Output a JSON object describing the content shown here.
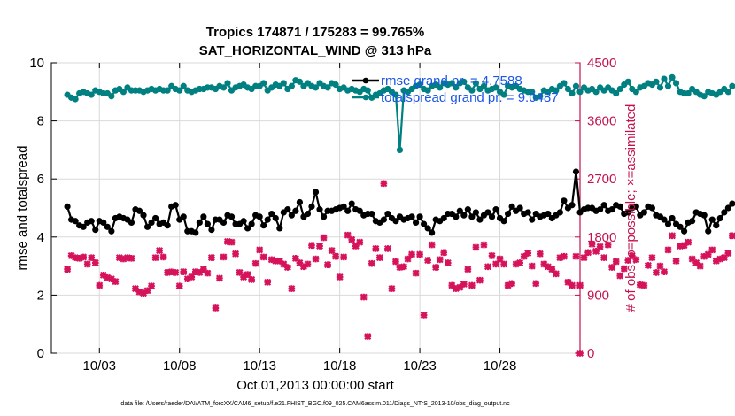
{
  "chart_data": {
    "type": "line",
    "title_line1": "Tropics 174871 / 175283 = 99.765%",
    "title_line2": "SAT_HORIZONTAL_WIND @ 313 hPa",
    "xlabel": "Oct.01,2013 00:00:00 start",
    "ylabel_left": "rmse and totalspread",
    "ylabel_right": "# of obs: o=possible; ×=assimilated",
    "footnote": "data file: /Users/raeder/DAI/ATM_forcXX/CAM6_setup/f.e21.FHIST_BGC.f09_025.CAM6assim.011/Diags_NTrS_2013-10/obs_diag_output.nc",
    "xlim": [
      0.0,
      33.0
    ],
    "ylim_left": [
      0,
      10
    ],
    "ylim_right": [
      0,
      4500
    ],
    "x_ticks": [
      {
        "value": 3,
        "label": "10/03"
      },
      {
        "value": 8,
        "label": "10/08"
      },
      {
        "value": 13,
        "label": "10/13"
      },
      {
        "value": 18,
        "label": "10/18"
      },
      {
        "value": 23,
        "label": "10/23"
      },
      {
        "value": 28,
        "label": "10/28"
      }
    ],
    "y_ticks_left": [
      "0",
      "2",
      "4",
      "6",
      "8",
      "10"
    ],
    "y_ticks_right": [
      "0",
      "900",
      "1800",
      "2700",
      "3600",
      "4500"
    ],
    "x_start": 1.0,
    "x_step": 0.25,
    "colors": {
      "rmse": "#000000",
      "totalspread": "#008080",
      "obs": "#d6125b",
      "right_axis": "#c4124f",
      "legend_text": "#1a56e8"
    },
    "series": [
      {
        "name": "rmse grand pr. = 4.7588",
        "axis": "left",
        "values": [
          5.05,
          4.6,
          4.55,
          4.4,
          4.35,
          4.5,
          4.55,
          4.25,
          4.55,
          4.5,
          4.35,
          4.2,
          4.65,
          4.7,
          4.65,
          4.6,
          4.5,
          4.95,
          4.9,
          4.75,
          4.35,
          4.5,
          4.65,
          4.45,
          4.5,
          4.4,
          5.05,
          5.1,
          4.6,
          4.7,
          4.2,
          4.2,
          4.15,
          4.5,
          4.7,
          4.45,
          4.25,
          4.6,
          4.6,
          4.5,
          4.75,
          4.7,
          4.45,
          4.45,
          4.55,
          4.3,
          4.45,
          4.75,
          4.7,
          4.4,
          4.6,
          4.8,
          4.65,
          4.3,
          4.85,
          4.95,
          4.75,
          4.9,
          5.2,
          4.7,
          4.8,
          5.05,
          5.55,
          4.95,
          4.7,
          4.9,
          4.9,
          4.95,
          5.0,
          5.05,
          4.9,
          5.15,
          4.95,
          4.9,
          4.75,
          4.8,
          4.8,
          4.55,
          4.5,
          4.6,
          4.8,
          4.65,
          4.55,
          4.7,
          4.6,
          4.65,
          4.7,
          4.5,
          4.7,
          4.45,
          4.3,
          4.15,
          4.6,
          4.55,
          4.65,
          4.8,
          4.8,
          4.7,
          4.9,
          4.75,
          4.95,
          4.7,
          4.85,
          4.6,
          4.75,
          4.85,
          4.7,
          4.95,
          4.65,
          4.55,
          4.8,
          5.05,
          4.9,
          5.0,
          4.8,
          4.85,
          4.6,
          4.8,
          4.7,
          4.75,
          4.8,
          4.65,
          4.75,
          4.85,
          5.25,
          5.0,
          5.1,
          6.25,
          4.85,
          4.95,
          5.0,
          5.0,
          4.9,
          4.95,
          5.1,
          4.9,
          4.95,
          5.1,
          5.05,
          4.8,
          4.85,
          5.0,
          5.05,
          4.75,
          4.85,
          5.05,
          5.0,
          4.75,
          4.7,
          4.6,
          4.45,
          4.65,
          4.45,
          4.35,
          4.2,
          4.5,
          4.55,
          4.85,
          4.8,
          4.75,
          4.2,
          4.6,
          4.4,
          4.65,
          4.85,
          5.0,
          5.15
        ]
      },
      {
        "name": "totalspread grand pr. = 9.0487",
        "axis": "left",
        "values": [
          8.9,
          8.8,
          8.75,
          8.95,
          9.0,
          8.95,
          8.9,
          9.05,
          9.0,
          8.95,
          8.95,
          8.85,
          9.05,
          9.1,
          9.0,
          9.15,
          9.05,
          9.05,
          9.05,
          9.0,
          9.05,
          9.1,
          9.05,
          9.1,
          9.05,
          9.05,
          9.2,
          9.1,
          9.05,
          9.2,
          9.05,
          9.0,
          9.05,
          9.1,
          9.1,
          9.15,
          9.15,
          9.1,
          9.2,
          9.15,
          9.3,
          9.05,
          9.15,
          9.2,
          9.25,
          9.15,
          9.1,
          9.2,
          9.2,
          9.3,
          9.05,
          9.15,
          9.25,
          9.2,
          9.3,
          9.1,
          9.2,
          9.4,
          9.35,
          9.2,
          9.3,
          9.2,
          9.15,
          9.3,
          9.2,
          9.15,
          9.3,
          9.25,
          9.1,
          9.15,
          9.05,
          9.1,
          9.05,
          9.0,
          9.1,
          9.05,
          8.8,
          8.9,
          8.95,
          9.05,
          9.1,
          9.0,
          8.9,
          7.0,
          9.05,
          9.0,
          9.1,
          9.2,
          9.25,
          9.1,
          9.05,
          9.2,
          9.25,
          9.15,
          9.3,
          9.25,
          9.3,
          9.15,
          9.3,
          9.35,
          9.15,
          9.05,
          9.3,
          9.1,
          9.2,
          9.05,
          9.1,
          9.15,
          9.0,
          8.9,
          9.2,
          9.15,
          9.2,
          9.1,
          9.05,
          9.0,
          9.0,
          8.8,
          8.85,
          9.05,
          9.0,
          9.1,
          9.05,
          9.2,
          9.3,
          9.1,
          8.95,
          9.2,
          9.0,
          9.15,
          9.05,
          9.1,
          9.0,
          9.15,
          9.05,
          9.15,
          9.05,
          8.95,
          9.1,
          9.25,
          9.35,
          9.1,
          9.0,
          9.15,
          9.2,
          9.3,
          9.25,
          9.35,
          9.15,
          9.45,
          9.2,
          9.5,
          9.3,
          9.0,
          8.95,
          8.95,
          9.1,
          9.0,
          8.9,
          8.85,
          9.0,
          8.95,
          8.9,
          9.0,
          9.1,
          9.0,
          9.2
        ]
      },
      {
        "name": "# of obs assimilated",
        "axis": "right",
        "marker": "x",
        "values": [
          1300,
          1510,
          1480,
          1470,
          1490,
          1380,
          1480,
          1400,
          1050,
          1210,
          1170,
          1150,
          1110,
          1480,
          1460,
          1480,
          1470,
          1000,
          950,
          930,
          970,
          1040,
          1480,
          1590,
          1490,
          1250,
          1260,
          1250,
          1040,
          1260,
          1150,
          1180,
          1260,
          1250,
          1300,
          1240,
          1480,
          700,
          1160,
          1490,
          1730,
          1720,
          1540,
          1250,
          1180,
          1220,
          1140,
          1390,
          1600,
          1490,
          1100,
          1450,
          1430,
          1430,
          1380,
          1330,
          1000,
          1470,
          1400,
          1340,
          1380,
          1670,
          1460,
          1660,
          1790,
          1370,
          1590,
          1500,
          1180,
          1490,
          1830,
          1760,
          1660,
          1720,
          870,
          260,
          1390,
          1620,
          1480,
          2630,
          1620,
          1000,
          1420,
          1330,
          1340,
          1460,
          1530,
          1240,
          1530,
          590,
          1440,
          1680,
          1330,
          1450,
          1560,
          1400,
          1050,
          1000,
          1020,
          1070,
          1300,
          1050,
          1640,
          1130,
          1680,
          1340,
          1510,
          1380,
          1460,
          1380,
          1050,
          1080,
          1380,
          1400,
          1500,
          1550,
          1350,
          1080,
          1540,
          1380,
          1340,
          1300,
          1230,
          1480,
          1500,
          1100,
          1050,
          1500,
          1050,
          1480,
          1560,
          1690,
          1580,
          1650,
          1480,
          1680,
          1330,
          1420,
          1200,
          1310,
          1440,
          1510,
          1450,
          1060,
          1050,
          1360,
          1480,
          1250,
          1350,
          1260,
          1600,
          1820,
          1430,
          1660,
          1670,
          1720,
          1460,
          1400,
          1350,
          1500,
          1530,
          1600,
          1430,
          1460,
          1480,
          1550,
          1820
        ]
      }
    ],
    "legend": {
      "placement": "top-right",
      "entries": [
        {
          "label": "rmse grand pr. = 4.7588",
          "series": "rmse"
        },
        {
          "label": "totalspread grand pr. = 9.0487",
          "series": "totalspread"
        }
      ]
    },
    "extra_points": [
      {
        "series": "obs",
        "x": 33.0,
        "y": 0
      }
    ]
  }
}
